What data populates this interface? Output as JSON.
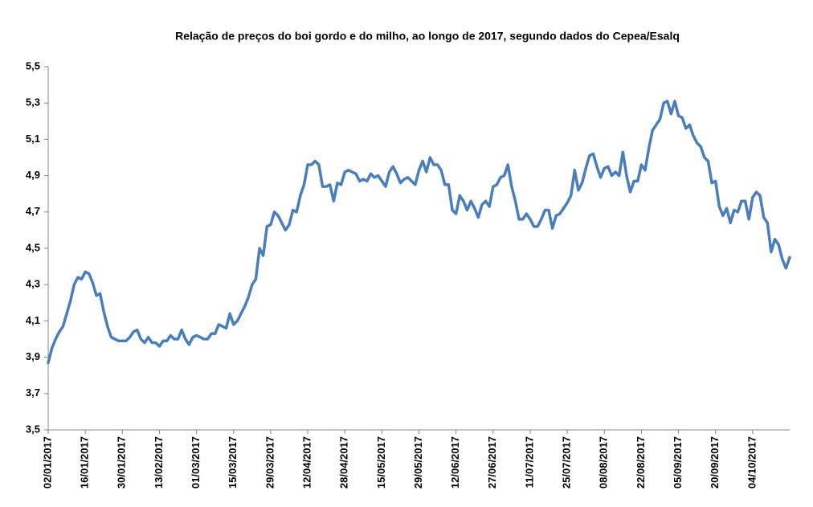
{
  "chart_data": {
    "type": "line",
    "title": "Relação de preços do boi gordo e do milho, ao longo de 2017, segundo dados do Cepea/Esalq",
    "categories": [
      "02/01/2017",
      null,
      null,
      null,
      null,
      null,
      null,
      null,
      null,
      null,
      "16/01/2017",
      null,
      null,
      null,
      null,
      null,
      null,
      null,
      null,
      null,
      "30/01/2017",
      null,
      null,
      null,
      null,
      null,
      null,
      null,
      null,
      null,
      "13/02/2017",
      null,
      null,
      null,
      null,
      null,
      null,
      null,
      null,
      null,
      "01/03/2017",
      null,
      null,
      null,
      null,
      null,
      null,
      null,
      null,
      null,
      "15/03/2017",
      null,
      null,
      null,
      null,
      null,
      null,
      null,
      null,
      null,
      "29/03/2017",
      null,
      null,
      null,
      null,
      null,
      null,
      null,
      null,
      null,
      "12/04/2017",
      null,
      null,
      null,
      null,
      null,
      null,
      null,
      null,
      null,
      "28/04/2017",
      null,
      null,
      null,
      null,
      null,
      null,
      null,
      null,
      null,
      "15/05/2017",
      null,
      null,
      null,
      null,
      null,
      null,
      null,
      null,
      null,
      "29/05/2017",
      null,
      null,
      null,
      null,
      null,
      null,
      null,
      null,
      null,
      "12/06/2017",
      null,
      null,
      null,
      null,
      null,
      null,
      null,
      null,
      null,
      "27/06/2017",
      null,
      null,
      null,
      null,
      null,
      null,
      null,
      null,
      null,
      "11/07/2017",
      null,
      null,
      null,
      null,
      null,
      null,
      null,
      null,
      null,
      "25/07/2017",
      null,
      null,
      null,
      null,
      null,
      null,
      null,
      null,
      null,
      "08/08/2017",
      null,
      null,
      null,
      null,
      null,
      null,
      null,
      null,
      null,
      "22/08/2017",
      null,
      null,
      null,
      null,
      null,
      null,
      null,
      null,
      null,
      "05/09/2017",
      null,
      null,
      null,
      null,
      null,
      null,
      null,
      null,
      null,
      "20/09/2017",
      null,
      null,
      null,
      null,
      null,
      null,
      null,
      null,
      null,
      "04/10/2017",
      null,
      null,
      null,
      null,
      null,
      null,
      null,
      null,
      null,
      null
    ],
    "values": [
      3.87,
      3.95,
      4.0,
      4.04,
      4.07,
      4.14,
      4.21,
      4.3,
      4.34,
      4.33,
      4.37,
      4.36,
      4.31,
      4.24,
      4.25,
      4.15,
      4.07,
      4.01,
      4.0,
      3.99,
      3.99,
      3.99,
      4.01,
      4.04,
      4.05,
      4.0,
      3.98,
      4.01,
      3.98,
      3.98,
      3.96,
      3.99,
      3.99,
      4.02,
      4.0,
      4.0,
      4.05,
      4.0,
      3.97,
      4.01,
      4.02,
      4.01,
      4.0,
      4.0,
      4.03,
      4.03,
      4.08,
      4.07,
      4.06,
      4.14,
      4.08,
      4.1,
      4.14,
      4.18,
      4.23,
      4.3,
      4.33,
      4.5,
      4.46,
      4.62,
      4.63,
      4.7,
      4.68,
      4.64,
      4.6,
      4.63,
      4.71,
      4.7,
      4.79,
      4.85,
      4.96,
      4.96,
      4.98,
      4.96,
      4.84,
      4.84,
      4.85,
      4.76,
      4.86,
      4.85,
      4.92,
      4.93,
      4.92,
      4.91,
      4.87,
      4.88,
      4.87,
      4.91,
      4.89,
      4.9,
      4.87,
      4.84,
      4.92,
      4.95,
      4.91,
      4.86,
      4.88,
      4.89,
      4.87,
      4.85,
      4.93,
      4.98,
      4.92,
      5.0,
      4.96,
      4.96,
      4.93,
      4.85,
      4.85,
      4.71,
      4.69,
      4.79,
      4.76,
      4.71,
      4.76,
      4.72,
      4.67,
      4.74,
      4.76,
      4.73,
      4.84,
      4.85,
      4.89,
      4.9,
      4.96,
      4.84,
      4.76,
      4.66,
      4.66,
      4.69,
      4.66,
      4.62,
      4.62,
      4.66,
      4.71,
      4.71,
      4.61,
      4.68,
      4.69,
      4.72,
      4.75,
      4.79,
      4.93,
      4.82,
      4.86,
      4.94,
      5.01,
      5.02,
      4.95,
      4.89,
      4.94,
      4.95,
      4.9,
      4.92,
      4.9,
      5.03,
      4.9,
      4.81,
      4.87,
      4.87,
      4.96,
      4.93,
      5.05,
      5.15,
      5.18,
      5.21,
      5.3,
      5.31,
      5.24,
      5.31,
      5.23,
      5.22,
      5.16,
      5.18,
      5.12,
      5.08,
      5.06,
      5.0,
      4.98,
      4.86,
      4.87,
      4.73,
      4.68,
      4.72,
      4.64,
      4.71,
      4.7,
      4.76,
      4.76,
      4.66,
      4.78,
      4.81,
      4.79,
      4.67,
      4.64,
      4.48,
      4.55,
      4.52,
      4.44,
      4.39,
      4.45
    ],
    "color": "#4a7ebb",
    "ylim": [
      3.5,
      5.5
    ],
    "yticks": [
      {
        "value": 3.5,
        "label": "3,5"
      },
      {
        "value": 3.7,
        "label": "3,7"
      },
      {
        "value": 3.9,
        "label": "3,9"
      },
      {
        "value": 4.1,
        "label": "4,1"
      },
      {
        "value": 4.3,
        "label": "4,3"
      },
      {
        "value": 4.5,
        "label": "4,5"
      },
      {
        "value": 4.7,
        "label": "4,7"
      },
      {
        "value": 4.9,
        "label": "4,9"
      },
      {
        "value": 5.1,
        "label": "5,1"
      },
      {
        "value": 5.3,
        "label": "5,3"
      },
      {
        "value": 5.5,
        "label": "5,5"
      }
    ],
    "grid": false
  }
}
